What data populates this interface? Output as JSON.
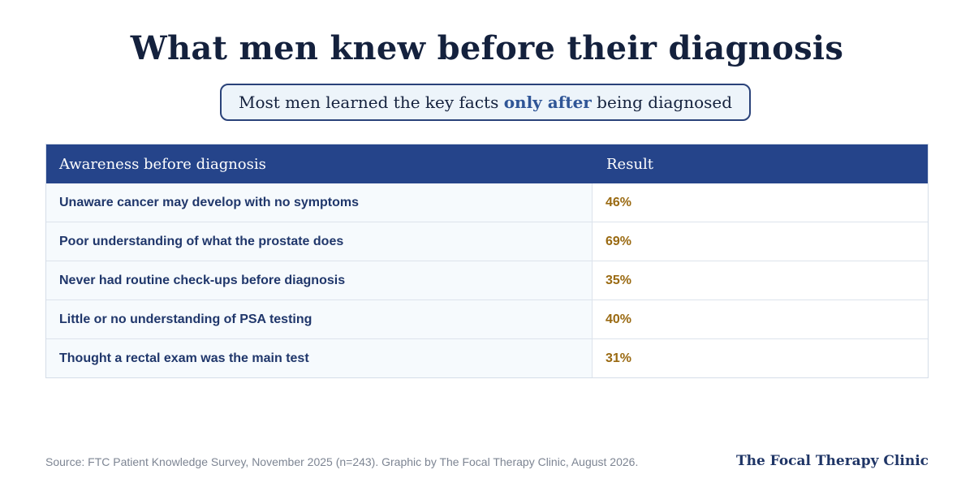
{
  "title": "What men knew before their diagnosis",
  "subtitle": {
    "before": "Most men learned the key facts ",
    "highlight": "only after",
    "after": " being diagnosed"
  },
  "chart_data": {
    "type": "table",
    "columns": [
      "Awareness before diagnosis",
      "Result"
    ],
    "rows": [
      {
        "label": "Unaware cancer may develop with no symptoms",
        "value": "46%"
      },
      {
        "label": "Poor understanding of what the prostate does",
        "value": "69%"
      },
      {
        "label": "Never had routine check-ups before diagnosis",
        "value": "35%"
      },
      {
        "label": "Little or no understanding of PSA testing",
        "value": "40%"
      },
      {
        "label": "Thought a rectal exam was the main test",
        "value": "31%"
      }
    ]
  },
  "footer": {
    "source": "Source: FTC Patient Knowledge Survey, November 2025 (n=243). Graphic by The Focal Therapy Clinic, August 2026.",
    "brand": "The Focal Therapy Clinic"
  },
  "colors": {
    "header_bg": "#25448a",
    "value_text": "#9a6a12",
    "title_text": "#14213d"
  }
}
